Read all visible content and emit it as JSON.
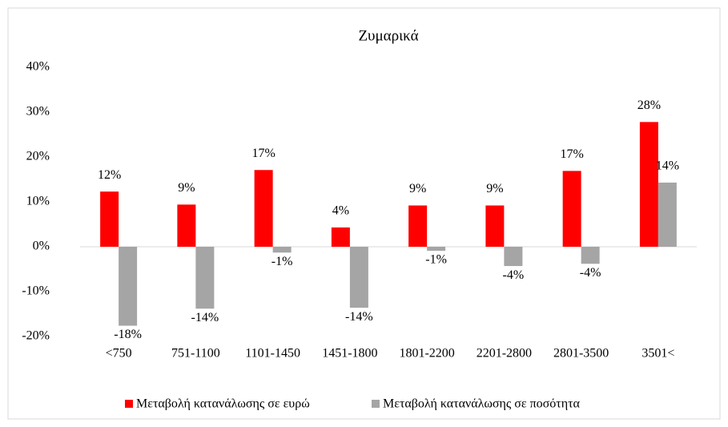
{
  "chart_data": {
    "type": "bar",
    "title": "Ζυμαρικά",
    "categories": [
      "<750",
      "751-1100",
      "1101-1450",
      "1451-1800",
      "1801-2200",
      "2201-2800",
      "2801-3500",
      "3501<"
    ],
    "series": [
      {
        "name": "Μεταβολή κατανάλωσης σε ευρώ",
        "color": "#ff0000",
        "values": [
          12.3,
          9.4,
          17.1,
          4.3,
          9.2,
          9.2,
          16.9,
          27.8
        ],
        "value_labels": [
          "12%",
          "9%",
          "17%",
          "4%",
          "9%",
          "9%",
          "17%",
          "28%"
        ]
      },
      {
        "name": "Μεταβολή κατανάλωσης σε ποσότητα",
        "color": "#a5a5a5",
        "values": [
          -17.6,
          -13.8,
          -1.3,
          -13.6,
          -0.9,
          -4.3,
          -3.8,
          14.3
        ],
        "value_labels": [
          "-18%",
          "-14%",
          "-1%",
          "-14%",
          "-1%",
          "-4%",
          "-4%",
          "14%"
        ]
      }
    ],
    "ylim": [
      -20,
      40
    ],
    "yticks": [
      {
        "value": -20,
        "label": "-20%"
      },
      {
        "value": -10,
        "label": "-10%"
      },
      {
        "value": 0,
        "label": "0%"
      },
      {
        "value": 10,
        "label": "10%"
      },
      {
        "value": 20,
        "label": "20%"
      },
      {
        "value": 30,
        "label": "30%"
      },
      {
        "value": 40,
        "label": "40%"
      }
    ],
    "grid": false,
    "legend": "bottom"
  }
}
